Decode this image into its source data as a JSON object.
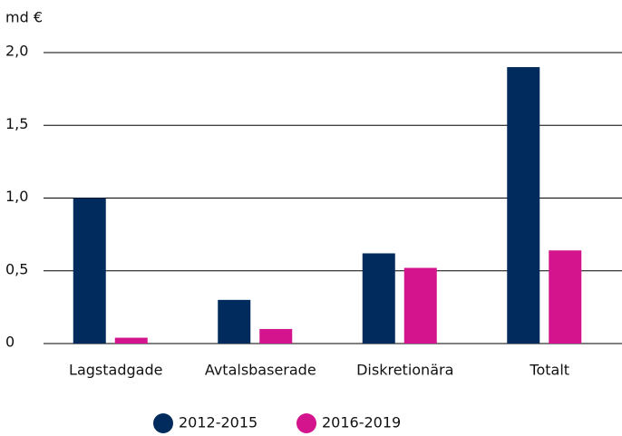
{
  "chart_data": {
    "type": "bar",
    "ylabel": "md €",
    "categories": [
      "Lagstadgade",
      "Avtalsbaserade",
      "Diskretionära",
      "Totalt"
    ],
    "series": [
      {
        "name": "2012-2015",
        "color": "#002b5c",
        "values": [
          1.0,
          0.3,
          0.62,
          1.9
        ]
      },
      {
        "name": "2016-2019",
        "color": "#d4148c",
        "values": [
          0.04,
          0.1,
          0.52,
          0.64
        ]
      }
    ],
    "ylim": [
      0,
      2.0
    ],
    "yticks": [
      0,
      {
        "value": 0.5,
        "label": "0,5"
      },
      {
        "value": 1.0,
        "label": "1,0"
      },
      {
        "value": 1.5,
        "label": "1,5"
      },
      {
        "value": 2.0,
        "label": "2,0"
      }
    ],
    "grid": true,
    "legend": "bottom"
  }
}
